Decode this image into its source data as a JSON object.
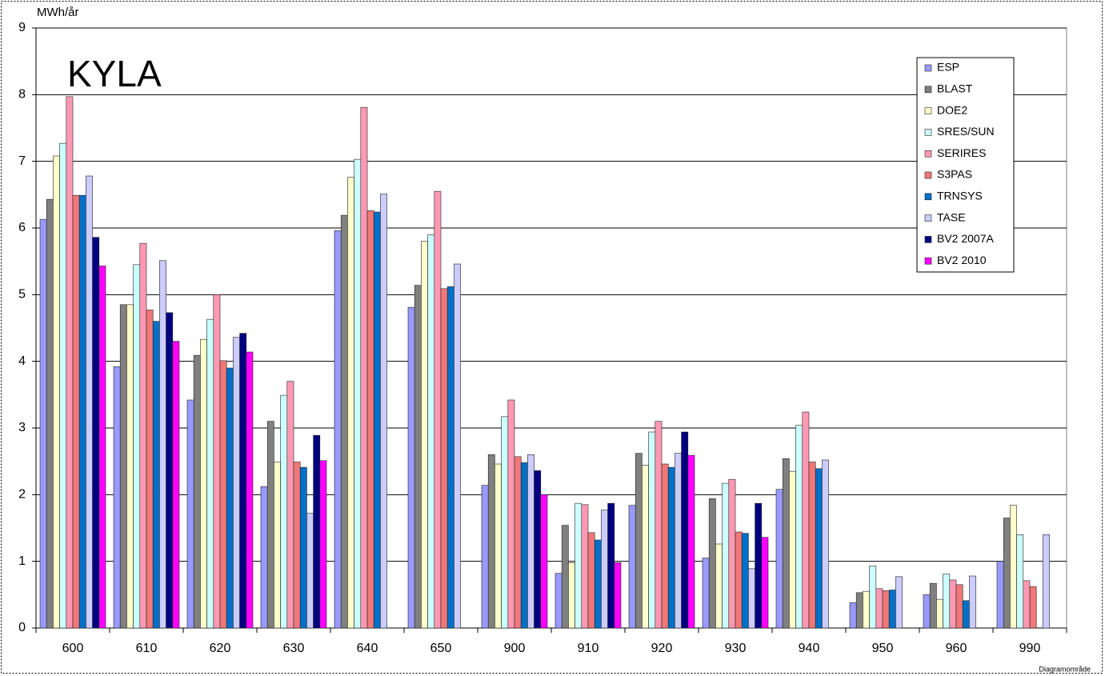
{
  "chart_data": {
    "type": "bar",
    "title": "KYLA",
    "y_label": "MWh/år",
    "annotation": "Diagramområde",
    "categories": [
      "600",
      "610",
      "620",
      "630",
      "640",
      "650",
      "900",
      "910",
      "920",
      "930",
      "940",
      "950",
      "960",
      "990"
    ],
    "ylim": [
      0,
      9
    ],
    "yticks": [
      0,
      1,
      2,
      3,
      4,
      5,
      6,
      7,
      8,
      9
    ],
    "grid": true,
    "series": [
      {
        "name": "ESP",
        "color": "#9999ff",
        "values": [
          6.13,
          3.92,
          3.42,
          2.12,
          5.96,
          4.81,
          2.14,
          0.82,
          1.84,
          1.05,
          2.08,
          0.38,
          0.5,
          1.0
        ]
      },
      {
        "name": "BLAST",
        "color": "#808080",
        "values": [
          6.43,
          4.85,
          4.09,
          3.1,
          6.19,
          5.14,
          2.6,
          1.54,
          2.62,
          1.94,
          2.54,
          0.53,
          0.67,
          1.65
        ]
      },
      {
        "name": "DOE2",
        "color": "#ffffcc",
        "values": [
          7.08,
          4.85,
          4.33,
          2.49,
          6.76,
          5.8,
          2.46,
          0.98,
          2.44,
          1.26,
          2.35,
          0.55,
          0.43,
          1.84
        ]
      },
      {
        "name": "SRES/SUN",
        "color": "#ccffff",
        "values": [
          7.27,
          5.45,
          4.63,
          3.49,
          7.03,
          5.9,
          3.17,
          1.87,
          2.94,
          2.17,
          3.04,
          0.93,
          0.81,
          1.4
        ]
      },
      {
        "name": "SERIRES",
        "color": "#ff99b3",
        "values": [
          7.97,
          5.77,
          5.0,
          3.7,
          7.81,
          6.55,
          3.42,
          1.85,
          3.1,
          2.23,
          3.24,
          0.59,
          0.72,
          0.71
        ]
      },
      {
        "name": "S3PAS",
        "color": "#f07878",
        "values": [
          6.49,
          4.77,
          4.01,
          2.49,
          6.26,
          5.09,
          2.57,
          1.43,
          2.46,
          1.44,
          2.49,
          0.56,
          0.65,
          0.62
        ]
      },
      {
        "name": "TRNSYS",
        "color": "#0070c8",
        "values": [
          6.49,
          4.6,
          3.9,
          2.41,
          6.24,
          5.12,
          2.48,
          1.32,
          2.41,
          1.42,
          2.39,
          0.57,
          0.41,
          null
        ]
      },
      {
        "name": "TASE",
        "color": "#ccccff",
        "values": [
          6.78,
          5.51,
          4.36,
          1.72,
          6.51,
          5.46,
          2.6,
          1.77,
          2.62,
          0.89,
          2.52,
          0.77,
          0.78,
          1.4
        ]
      },
      {
        "name": "BV2 2007A",
        "color": "#000080",
        "values": [
          5.86,
          4.73,
          4.42,
          2.89,
          null,
          null,
          2.36,
          1.87,
          2.94,
          1.87,
          null,
          null,
          null,
          null
        ]
      },
      {
        "name": "BV2 2010",
        "color": "#ff00ff",
        "values": [
          5.43,
          4.3,
          4.14,
          2.51,
          null,
          null,
          2.0,
          0.98,
          2.59,
          1.36,
          null,
          null,
          null,
          null
        ]
      }
    ]
  }
}
